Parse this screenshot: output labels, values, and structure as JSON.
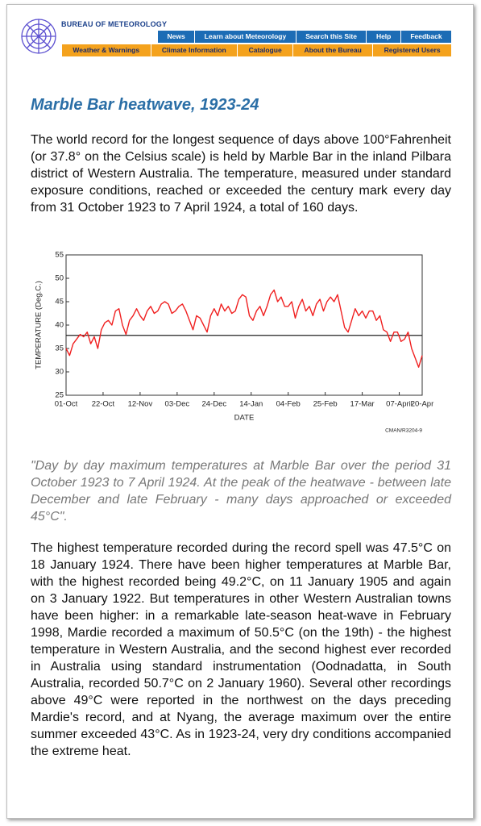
{
  "header": {
    "logo_text": "BUREAU OF METEOROLOGY",
    "nav_top": [
      "News",
      "Learn about Meteorology",
      "Search this Site",
      "Help",
      "Feedback"
    ],
    "nav_bottom": [
      "Weather & Warnings",
      "Climate Information",
      "Catalogue",
      "About the Bureau",
      "Registered Users"
    ]
  },
  "title": "Marble Bar heatwave, 1923-24",
  "intro": "The world record for the longest sequence of days above 100°Fahrenheit (or 37.8° on the Celsius scale) is held by Marble Bar in the inland Pilbara district of Western Australia. The temperature, measured under standard exposure conditions, reached or exceeded the century mark every day from 31 October 1923 to 7 April 1924, a total of 160 days.",
  "chart_data": {
    "type": "line",
    "y_label": "TEMPERATURE (Deg.C.)",
    "x_label": "DATE",
    "note": "CMAN/R3204-9",
    "x": [
      0,
      2,
      4,
      6,
      8,
      10,
      12,
      14,
      16,
      18,
      20,
      22,
      24,
      26,
      28,
      30,
      32,
      34,
      36,
      38,
      40,
      42,
      44,
      46,
      48,
      50,
      52,
      54,
      56,
      58,
      60,
      62,
      64,
      66,
      68,
      70,
      72,
      74,
      76,
      78,
      80,
      82,
      84,
      86,
      88,
      90,
      92,
      94,
      96,
      98,
      100,
      102,
      104,
      106,
      108,
      110,
      112,
      114,
      116,
      118,
      120,
      122,
      124,
      126,
      128,
      130,
      132,
      134,
      136,
      138,
      140,
      142,
      144,
      146,
      148,
      150,
      152,
      154,
      156,
      158,
      160,
      162,
      164,
      166,
      168,
      170,
      172,
      174,
      176,
      178,
      180,
      182,
      184,
      186,
      188,
      190,
      192,
      194,
      196,
      198,
      200,
      202
    ],
    "values": [
      35,
      33.5,
      36,
      37,
      38,
      37.5,
      38.5,
      36,
      37.5,
      35,
      39,
      40.5,
      41,
      40,
      43,
      43.5,
      40,
      38,
      41,
      42,
      43.5,
      42,
      41,
      43,
      44,
      42.5,
      43,
      44.5,
      45,
      44.5,
      42.5,
      43,
      44,
      44.5,
      43,
      41,
      39,
      42,
      41.5,
      40,
      38.5,
      42,
      43.5,
      42,
      44.5,
      43,
      44,
      42.5,
      43,
      45.5,
      46.5,
      46,
      42,
      41,
      43,
      44,
      42,
      44,
      46.5,
      47.5,
      45,
      46,
      44,
      44,
      45,
      41.5,
      44,
      45.5,
      43,
      44,
      42,
      44.5,
      45.5,
      43,
      45,
      46,
      45,
      46.5,
      43,
      39.5,
      38.5,
      41,
      43.5,
      42,
      43,
      41.5,
      43,
      43,
      41,
      42,
      39,
      38.5,
      36.5,
      38.5,
      38.5,
      36.5,
      37,
      38.5,
      35,
      33,
      31,
      33.5
    ],
    "color": "#f02020",
    "reference_line": 37.8,
    "xlim": [
      0,
      202
    ],
    "ylim": [
      25,
      55
    ],
    "yticks": [
      25,
      30,
      35,
      40,
      45,
      50,
      55
    ],
    "xticks": [
      {
        "value": 0,
        "label": "01-Oct"
      },
      {
        "value": 21,
        "label": "22-Oct"
      },
      {
        "value": 42,
        "label": "12-Nov"
      },
      {
        "value": 63,
        "label": "03-Dec"
      },
      {
        "value": 84,
        "label": "24-Dec"
      },
      {
        "value": 105,
        "label": "14-Jan"
      },
      {
        "value": 126,
        "label": "04-Feb"
      },
      {
        "value": 147,
        "label": "25-Feb"
      },
      {
        "value": 168,
        "label": "17-Mar"
      },
      {
        "value": 189,
        "label": "07-April"
      },
      {
        "value": 202,
        "label": "20-Apr"
      }
    ]
  },
  "caption": "\"Day by day maximum temperatures at Marble Bar over the period 31 October 1923 to 7 April 1924. At the peak of the heatwave - between late December and late February - many days approached or exceeded 45°C\".",
  "body": "The highest temperature recorded during the record spell was 47.5°C on 18 January 1924. There have been higher temperatures at Marble Bar, with the highest recorded being 49.2°C, on 11 January 1905 and again on 3 January 1922. But temperatures in other Western Australian towns have been higher: in a remarkable late-season heat-wave in February 1998, Mardie recorded a maximum of 50.5°C (on the 19th) - the highest temperature in Western Australia, and the second highest ever recorded in Australia using standard instrumentation (Oodnadatta, in South Australia, recorded 50.7°C on 2 January 1960). Several other recordings above 49°C were reported in the northwest on the days preceding Mardie's record, and at Nyang, the average maximum over the entire summer exceeded 43°C. As in 1923-24, very dry conditions accompanied the extreme heat."
}
